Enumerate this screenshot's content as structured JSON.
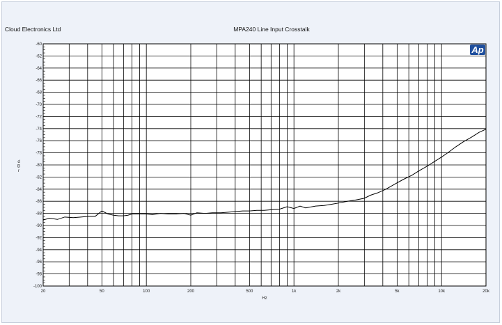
{
  "header": {
    "company": "Cloud Electronics Ltd",
    "title": "MPA240 Line Input Crosstalk"
  },
  "logo": {
    "text": "Ap",
    "color": "#1f4f9e"
  },
  "chart_data": {
    "type": "line",
    "title": "MPA240 Line Input Crosstalk",
    "xlabel": "Hz",
    "ylabel": "dBr",
    "xscale": "log",
    "xlim": [
      20,
      20000
    ],
    "ylim": [
      -100,
      -60
    ],
    "grid": true,
    "x_ticks": [
      20,
      50,
      100,
      200,
      500,
      1000,
      2000,
      5000,
      10000,
      20000
    ],
    "x_tick_labels": [
      "20",
      "50",
      "100",
      "200",
      "500",
      "1k",
      "2k",
      "5k",
      "10k",
      "20k"
    ],
    "y_ticks": [
      -60,
      -62,
      -64,
      -66,
      -68,
      -70,
      -72,
      -74,
      -76,
      -78,
      -80,
      -82,
      -84,
      -86,
      -88,
      -90,
      -92,
      -94,
      -96,
      -98,
      -100
    ],
    "y_tick_labels": [
      "-60",
      "-62",
      "-64",
      "-66",
      "-68",
      "-70",
      "-72",
      "-74",
      "-76",
      "-78",
      "-80",
      "-82",
      "-84",
      "-86",
      "-88",
      "-90",
      "-92",
      "-94",
      "-96",
      "-98",
      "-100"
    ],
    "series": [
      {
        "color": "#000000",
        "x": [
          20,
          22,
          25,
          28,
          32,
          36,
          40,
          45,
          50,
          55,
          60,
          65,
          70,
          75,
          80,
          90,
          100,
          110,
          125,
          140,
          160,
          180,
          200,
          220,
          250,
          280,
          320,
          360,
          400,
          450,
          500,
          560,
          630,
          700,
          800,
          900,
          1000,
          1100,
          1200,
          1400,
          1600,
          1800,
          2000,
          2300,
          2600,
          3000,
          3300,
          3700,
          4200,
          4800,
          5500,
          6300,
          7000,
          8000,
          9000,
          10000,
          11000,
          12500,
          14000,
          16000,
          18000,
          20000
        ],
        "y": [
          -89.1,
          -88.8,
          -89.0,
          -88.6,
          -88.7,
          -88.6,
          -88.5,
          -88.5,
          -87.6,
          -88.1,
          -88.3,
          -88.4,
          -88.4,
          -88.3,
          -88.1,
          -88.1,
          -88.1,
          -88.2,
          -88.0,
          -88.1,
          -88.1,
          -88.0,
          -88.3,
          -87.9,
          -88.0,
          -87.9,
          -87.9,
          -87.8,
          -87.7,
          -87.6,
          -87.6,
          -87.5,
          -87.5,
          -87.4,
          -87.3,
          -86.9,
          -87.2,
          -86.8,
          -87.1,
          -86.8,
          -86.7,
          -86.5,
          -86.3,
          -86.0,
          -85.8,
          -85.5,
          -85.0,
          -84.6,
          -84.0,
          -83.2,
          -82.4,
          -81.7,
          -81.0,
          -80.2,
          -79.4,
          -78.7,
          -78.0,
          -77.0,
          -76.2,
          -75.4,
          -74.6,
          -74.1
        ]
      }
    ]
  }
}
